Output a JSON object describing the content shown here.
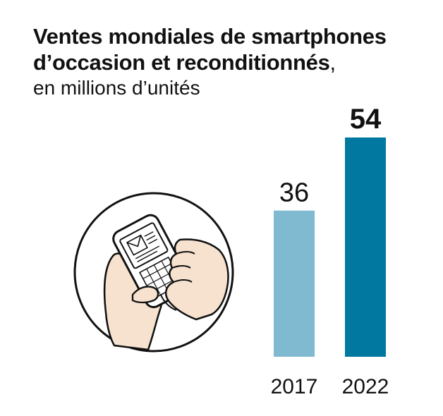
{
  "header": {
    "title_line1": "Ventes mondiales de smartphones",
    "title_line2": "d’occasion et reconditionnés",
    "title_comma": ",",
    "subtitle": "en millions d’unités"
  },
  "illustration": {
    "icon": "hands-holding-phone-icon"
  },
  "chart_data": {
    "type": "bar",
    "title": "Ventes mondiales de smartphones d’occasion et reconditionnés",
    "subtitle": "en millions d’unités",
    "categories": [
      "2017",
      "2022"
    ],
    "values": [
      36,
      54
    ],
    "value_labels": [
      "36",
      "54"
    ],
    "colors": [
      "#7fbad0",
      "#00789f"
    ],
    "ylim": [
      0,
      54
    ],
    "grid": false,
    "legend": "none"
  }
}
